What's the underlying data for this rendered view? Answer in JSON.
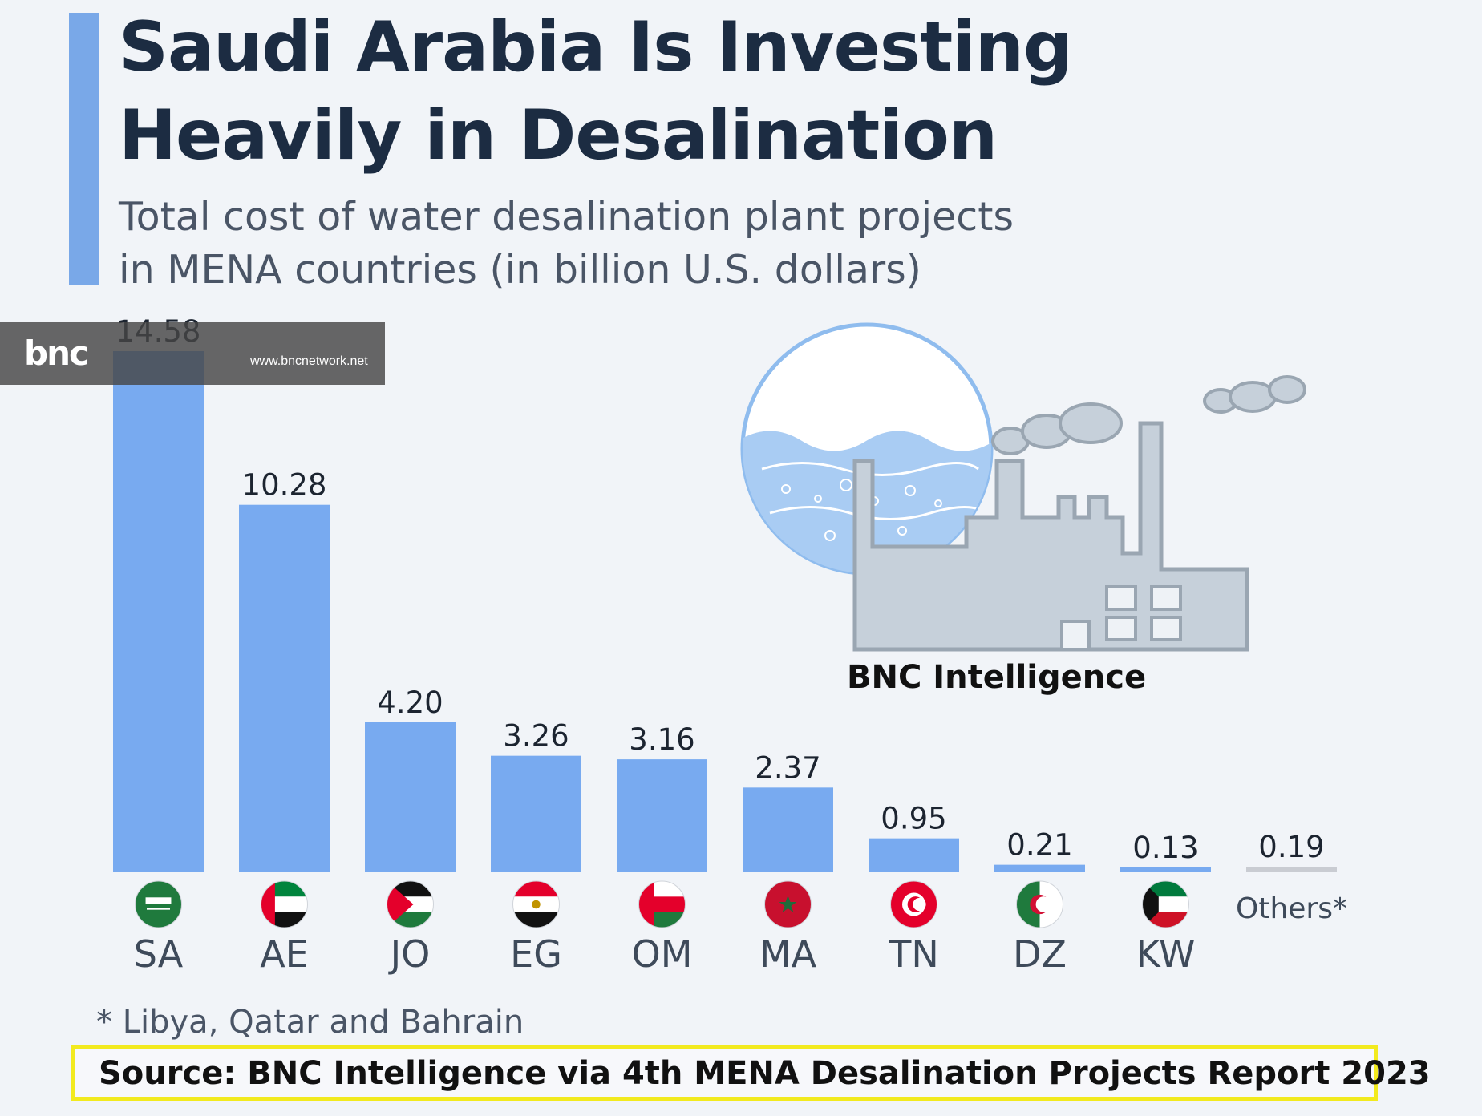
{
  "header": {
    "title_line1": "Saudi Arabia Is Investing",
    "title_line2": "Heavily in Desalination",
    "subtitle_line1": "Total cost of water desalination plant projects",
    "subtitle_line2": "in MENA countries (in billion U.S. dollars)"
  },
  "watermark": {
    "logo": "bnc",
    "url": "www.bncnetwork.net"
  },
  "illustration": {
    "label": "BNC Intelligence"
  },
  "footnote": "* Libya, Qatar and Bahrain",
  "source": "Source: BNC Intelligence via 4th MENA Desalination Projects Report 2023",
  "colors": {
    "bar": "#78aaf0",
    "others_bar": "#c9ccd2",
    "accent": "#79a8e8",
    "source_border": "#f2ea1e"
  },
  "chart_data": {
    "type": "bar",
    "title": "Saudi Arabia Is Investing Heavily in Desalination",
    "subtitle": "Total cost of water desalination plant projects in MENA countries (in billion U.S. dollars)",
    "categories": [
      "SA",
      "AE",
      "JO",
      "EG",
      "OM",
      "MA",
      "TN",
      "DZ",
      "KW",
      "Others*"
    ],
    "values": [
      14.58,
      10.28,
      4.2,
      3.26,
      3.16,
      2.37,
      0.95,
      0.21,
      0.13,
      0.19
    ],
    "value_labels": [
      "14.58",
      "10.28",
      "4.20",
      "3.26",
      "3.16",
      "2.37",
      "0.95",
      "0.21",
      "0.13",
      "0.19"
    ],
    "flags": [
      "saudi-arabia-flag",
      "uae-flag",
      "jordan-flag",
      "egypt-flag",
      "oman-flag",
      "morocco-flag",
      "tunisia-flag",
      "algeria-flag",
      "kuwait-flag",
      null
    ],
    "xlabel": "",
    "ylabel": "",
    "ylim": [
      0,
      14.58
    ]
  }
}
